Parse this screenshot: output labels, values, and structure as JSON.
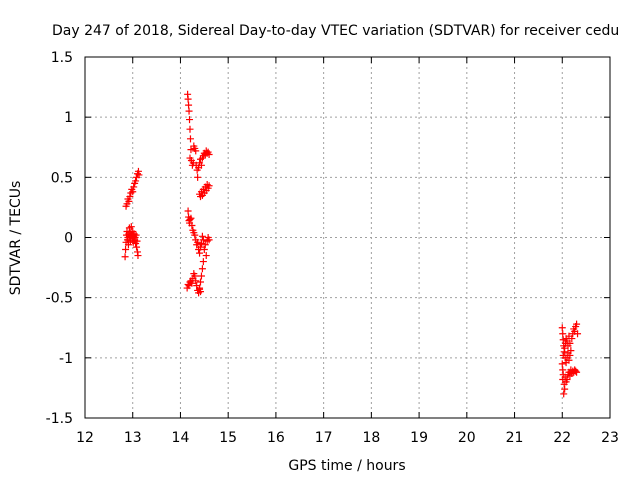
{
  "chart_data": {
    "type": "scatter",
    "title": "Day 247 of 2018, Sidereal Day-to-day VTEC variation (SDTVAR) for receiver cedu",
    "xlabel": "GPS time / hours",
    "ylabel": "SDTVAR / TECUs",
    "xlim": [
      12,
      23
    ],
    "ylim": [
      -1.5,
      1.5
    ],
    "x_ticks": [
      12,
      13,
      14,
      15,
      16,
      17,
      18,
      19,
      20,
      21,
      22,
      23
    ],
    "y_ticks": [
      -1.5,
      -1,
      -0.5,
      0,
      0.5,
      1,
      1.5
    ],
    "x_tick_labels": [
      "12",
      "13",
      "14",
      "15",
      "16",
      "17",
      "18",
      "19",
      "20",
      "21",
      "22",
      "23"
    ],
    "y_tick_labels": [
      "-1.5",
      "-1",
      "-0.5",
      "0",
      "0.5",
      "1",
      "1.5"
    ],
    "grid": true,
    "marker": "+",
    "color": "#ff0000",
    "series": [
      {
        "name": "SDTVAR",
        "points": [
          [
            12.84,
            -0.16
          ],
          [
            12.85,
            -0.1
          ],
          [
            12.86,
            -0.04
          ],
          [
            12.87,
            0.02
          ],
          [
            12.88,
            0.05
          ],
          [
            12.89,
            -0.02
          ],
          [
            12.9,
            0.0
          ],
          [
            12.91,
            -0.06
          ],
          [
            12.92,
            0.03
          ],
          [
            12.93,
            0.08
          ],
          [
            12.94,
            0.01
          ],
          [
            12.95,
            -0.03
          ],
          [
            12.96,
            0.04
          ],
          [
            12.97,
            0.09
          ],
          [
            12.98,
            0.02
          ],
          [
            12.99,
            -0.01
          ],
          [
            13.0,
            0.05
          ],
          [
            13.01,
            -0.04
          ],
          [
            13.02,
            0.01
          ],
          [
            13.03,
            0.03
          ],
          [
            13.04,
            -0.02
          ],
          [
            13.05,
            0.0
          ],
          [
            13.06,
            -0.05
          ],
          [
            13.07,
            0.02
          ],
          [
            13.08,
            -0.08
          ],
          [
            13.09,
            -0.03
          ],
          [
            13.1,
            -0.12
          ],
          [
            13.11,
            -0.15
          ],
          [
            12.86,
            0.26
          ],
          [
            12.88,
            0.28
          ],
          [
            12.9,
            0.32
          ],
          [
            12.92,
            0.3
          ],
          [
            12.94,
            0.34
          ],
          [
            12.96,
            0.37
          ],
          [
            12.98,
            0.4
          ],
          [
            13.0,
            0.38
          ],
          [
            13.02,
            0.42
          ],
          [
            13.04,
            0.45
          ],
          [
            13.06,
            0.47
          ],
          [
            13.08,
            0.5
          ],
          [
            13.1,
            0.53
          ],
          [
            13.12,
            0.55
          ],
          [
            13.13,
            0.52
          ],
          [
            14.15,
            1.19
          ],
          [
            14.16,
            1.15
          ],
          [
            14.17,
            1.1
          ],
          [
            14.18,
            1.05
          ],
          [
            14.19,
            0.98
          ],
          [
            14.2,
            0.9
          ],
          [
            14.21,
            0.82
          ],
          [
            14.22,
            0.73
          ],
          [
            14.2,
            0.66
          ],
          [
            14.23,
            0.64
          ],
          [
            14.25,
            0.6
          ],
          [
            14.27,
            0.62
          ],
          [
            14.28,
            0.76
          ],
          [
            14.3,
            0.74
          ],
          [
            14.32,
            0.72
          ],
          [
            14.33,
            0.6
          ],
          [
            14.35,
            0.56
          ],
          [
            14.36,
            0.5
          ],
          [
            14.38,
            0.58
          ],
          [
            14.4,
            0.62
          ],
          [
            14.42,
            0.65
          ],
          [
            14.44,
            0.6
          ],
          [
            14.46,
            0.66
          ],
          [
            14.48,
            0.68
          ],
          [
            14.5,
            0.7
          ],
          [
            14.52,
            0.69
          ],
          [
            14.54,
            0.72
          ],
          [
            14.56,
            0.7
          ],
          [
            14.58,
            0.71
          ],
          [
            14.6,
            0.69
          ],
          [
            14.4,
            0.36
          ],
          [
            14.42,
            0.34
          ],
          [
            14.44,
            0.38
          ],
          [
            14.46,
            0.35
          ],
          [
            14.48,
            0.4
          ],
          [
            14.5,
            0.37
          ],
          [
            14.52,
            0.42
          ],
          [
            14.54,
            0.39
          ],
          [
            14.56,
            0.44
          ],
          [
            14.58,
            0.41
          ],
          [
            14.6,
            0.43
          ],
          [
            14.16,
            0.22
          ],
          [
            14.17,
            0.17
          ],
          [
            14.18,
            0.14
          ],
          [
            14.19,
            0.12
          ],
          [
            14.2,
            0.15
          ],
          [
            14.22,
            0.16
          ],
          [
            14.24,
            0.1
          ],
          [
            14.26,
            0.06
          ],
          [
            14.28,
            0.04
          ],
          [
            14.3,
            0.02
          ],
          [
            14.32,
            -0.02
          ],
          [
            14.34,
            -0.06
          ],
          [
            14.36,
            -0.04
          ],
          [
            14.38,
            -0.1
          ],
          [
            14.4,
            -0.13
          ],
          [
            14.42,
            -0.08
          ],
          [
            14.44,
            -0.05
          ],
          [
            14.46,
            0.01
          ],
          [
            14.48,
            -0.02
          ],
          [
            14.5,
            -0.1
          ],
          [
            14.52,
            -0.06
          ],
          [
            14.54,
            -0.15
          ],
          [
            14.56,
            -0.03
          ],
          [
            14.58,
            0.0
          ],
          [
            14.6,
            -0.02
          ],
          [
            14.48,
            -0.2
          ],
          [
            14.46,
            -0.26
          ],
          [
            14.44,
            -0.32
          ],
          [
            14.42,
            -0.37
          ],
          [
            14.4,
            -0.42
          ],
          [
            14.14,
            -0.42
          ],
          [
            14.16,
            -0.39
          ],
          [
            14.18,
            -0.4
          ],
          [
            14.2,
            -0.37
          ],
          [
            14.22,
            -0.36
          ],
          [
            14.24,
            -0.38
          ],
          [
            14.26,
            -0.34
          ],
          [
            14.28,
            -0.3
          ],
          [
            14.3,
            -0.32
          ],
          [
            14.32,
            -0.36
          ],
          [
            14.34,
            -0.4
          ],
          [
            14.36,
            -0.44
          ],
          [
            14.38,
            -0.46
          ],
          [
            14.4,
            -0.43
          ],
          [
            14.42,
            -0.45
          ],
          [
            22.0,
            -0.75
          ],
          [
            22.01,
            -0.8
          ],
          [
            22.02,
            -0.85
          ],
          [
            22.03,
            -0.9
          ],
          [
            22.04,
            -0.95
          ],
          [
            22.02,
            -0.98
          ],
          [
            22.05,
            -0.92
          ],
          [
            22.06,
            -1.0
          ],
          [
            22.07,
            -0.88
          ],
          [
            22.08,
            -0.84
          ],
          [
            22.1,
            -0.86
          ],
          [
            22.12,
            -0.9
          ],
          [
            22.14,
            -0.82
          ],
          [
            22.16,
            -0.88
          ],
          [
            22.18,
            -0.94
          ],
          [
            22.2,
            -0.84
          ],
          [
            22.22,
            -0.8
          ],
          [
            22.24,
            -0.76
          ],
          [
            22.26,
            -0.78
          ],
          [
            22.28,
            -0.74
          ],
          [
            22.3,
            -0.72
          ],
          [
            22.32,
            -0.8
          ],
          [
            22.1,
            -1.0
          ],
          [
            22.12,
            -0.96
          ],
          [
            22.14,
            -1.02
          ],
          [
            22.16,
            -0.98
          ],
          [
            22.08,
            -1.04
          ],
          [
            22.0,
            -1.05
          ],
          [
            22.01,
            -1.1
          ],
          [
            22.02,
            -1.14
          ],
          [
            22.01,
            -1.18
          ],
          [
            22.04,
            -1.22
          ],
          [
            22.05,
            -1.26
          ],
          [
            22.03,
            -1.3
          ],
          [
            22.06,
            -1.16
          ],
          [
            22.08,
            -1.2
          ],
          [
            22.1,
            -1.18
          ],
          [
            22.12,
            -1.14
          ],
          [
            22.14,
            -1.12
          ],
          [
            22.16,
            -1.15
          ],
          [
            22.18,
            -1.1
          ],
          [
            22.2,
            -1.13
          ],
          [
            22.22,
            -1.11
          ],
          [
            22.24,
            -1.12
          ],
          [
            22.26,
            -1.1
          ],
          [
            22.28,
            -1.11
          ],
          [
            22.3,
            -1.12
          ]
        ]
      }
    ]
  }
}
